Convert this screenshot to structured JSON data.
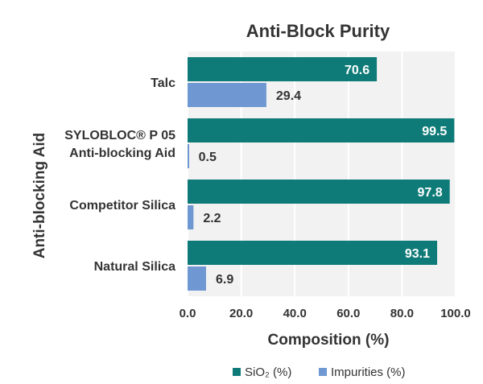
{
  "chart_data": {
    "type": "bar",
    "orientation": "horizontal",
    "title": "Anti-Block Purity",
    "xlabel": "Composition (%)",
    "ylabel": "Anti-blocking Aid",
    "xlim": [
      0,
      100
    ],
    "xticks": [
      "0.0",
      "20.0",
      "40.0",
      "60.0",
      "80.0",
      "100.0"
    ],
    "grid": true,
    "legend_position": "bottom",
    "categories": [
      [
        "Talc"
      ],
      [
        "SYLOBLOC® P 05",
        "Anti-blocking Aid"
      ],
      [
        "Competitor Silica"
      ],
      [
        "Natural Silica"
      ]
    ],
    "series": [
      {
        "name": "SiO₂ (%)",
        "color": "#0f7b78",
        "values": [
          70.6,
          99.5,
          97.8,
          93.1
        ],
        "labels": [
          "70.6",
          "99.5",
          "97.8",
          "93.1"
        ]
      },
      {
        "name": "Impurities (%)",
        "color": "#6f98d2",
        "values": [
          29.4,
          0.5,
          2.2,
          6.9
        ],
        "labels": [
          "29.4",
          "0.5",
          "2.2",
          "6.9"
        ]
      }
    ]
  },
  "colors": {
    "plot_background": "#f2f2f2",
    "gridline": "#ffffff",
    "text": "#333333"
  }
}
